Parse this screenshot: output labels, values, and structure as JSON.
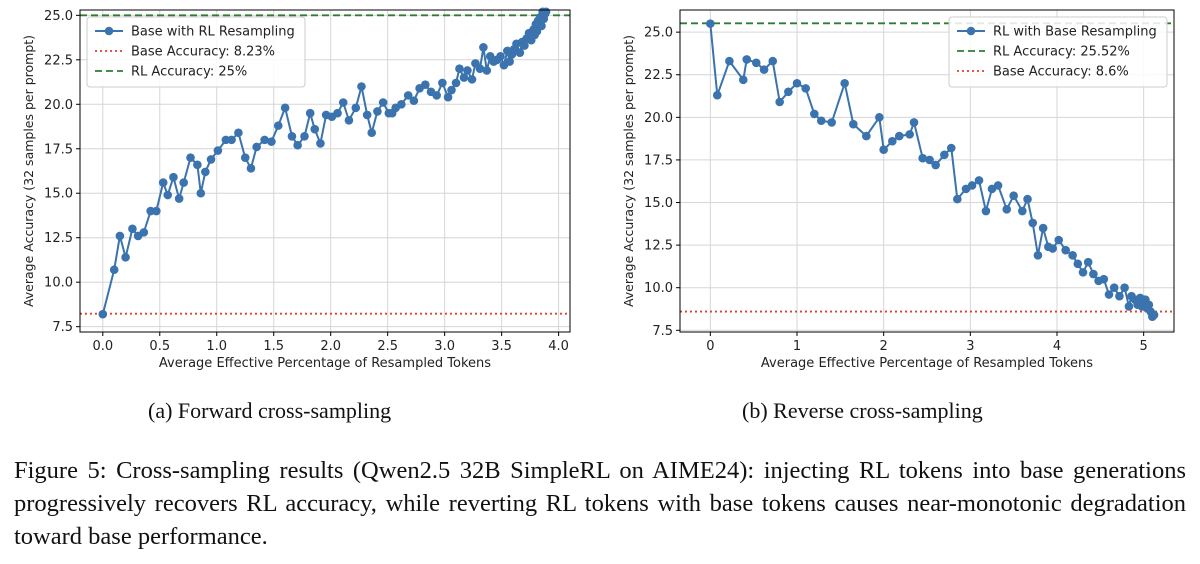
{
  "chart_data": [
    {
      "type": "line",
      "subcaption": "(a) Forward cross-sampling",
      "xlabel": "Average Effective Percentage of Resampled Tokens",
      "ylabel": "Average Accuracy (32 samples per prompt)",
      "xlim": [
        -0.2,
        4.1
      ],
      "ylim": [
        7.2,
        25.3
      ],
      "xticks": [
        0.0,
        0.5,
        1.0,
        1.5,
        2.0,
        2.5,
        3.0,
        3.5,
        4.0
      ],
      "xtick_labels": [
        "0.0",
        "0.5",
        "1.0",
        "1.5",
        "2.0",
        "2.5",
        "3.0",
        "3.5",
        "4.0"
      ],
      "yticks": [
        7.5,
        10.0,
        12.5,
        15.0,
        17.5,
        20.0,
        22.5,
        25.0
      ],
      "ytick_labels": [
        "7.5",
        "10.0",
        "12.5",
        "15.0",
        "17.5",
        "20.0",
        "22.5",
        "25.0"
      ],
      "grid": true,
      "legend_position": "top-left",
      "series": [
        {
          "name": "Base with RL Resampling",
          "color": "#3a73ad",
          "x": [
            0.0,
            0.1,
            0.15,
            0.2,
            0.26,
            0.31,
            0.36,
            0.42,
            0.47,
            0.53,
            0.57,
            0.62,
            0.67,
            0.71,
            0.77,
            0.83,
            0.86,
            0.9,
            0.95,
            1.01,
            1.08,
            1.13,
            1.19,
            1.25,
            1.3,
            1.35,
            1.42,
            1.48,
            1.54,
            1.6,
            1.66,
            1.71,
            1.77,
            1.82,
            1.86,
            1.91,
            1.96,
            2.01,
            2.06,
            2.11,
            2.16,
            2.22,
            2.27,
            2.32,
            2.36,
            2.41,
            2.46,
            2.51,
            2.54,
            2.57,
            2.62,
            2.68,
            2.73,
            2.78,
            2.83,
            2.88,
            2.93,
            2.98,
            3.03,
            3.06,
            3.1,
            3.13,
            3.17,
            3.2,
            3.24,
            3.27,
            3.31,
            3.34,
            3.37,
            3.4,
            3.43,
            3.46,
            3.49,
            3.52,
            3.55,
            3.57,
            3.59,
            3.61,
            3.63,
            3.66,
            3.68,
            3.7,
            3.72,
            3.74,
            3.76,
            3.78,
            3.79,
            3.8,
            3.81,
            3.82,
            3.83,
            3.84,
            3.85,
            3.86,
            3.87,
            3.88,
            3.89
          ],
          "y": [
            8.2,
            10.7,
            12.6,
            11.4,
            13.0,
            12.6,
            12.8,
            14.0,
            14.0,
            15.6,
            14.9,
            15.9,
            14.7,
            15.6,
            17.0,
            16.6,
            15.0,
            16.2,
            16.9,
            17.4,
            18.0,
            18.0,
            18.4,
            17.0,
            16.4,
            17.6,
            18.0,
            17.9,
            18.8,
            19.8,
            18.2,
            17.7,
            18.2,
            19.5,
            18.6,
            17.8,
            19.4,
            19.3,
            19.5,
            20.1,
            19.1,
            19.8,
            21.0,
            19.4,
            18.4,
            19.6,
            20.1,
            19.5,
            19.5,
            19.8,
            20.0,
            20.5,
            20.2,
            20.9,
            21.1,
            20.7,
            20.5,
            21.2,
            20.4,
            20.8,
            21.2,
            22.0,
            21.5,
            21.9,
            21.4,
            22.3,
            22.0,
            23.2,
            21.9,
            22.7,
            22.4,
            22.5,
            22.7,
            22.2,
            23.0,
            22.4,
            22.8,
            23.1,
            23.4,
            22.9,
            23.5,
            23.3,
            23.7,
            24.0,
            23.6,
            24.2,
            23.9,
            24.5,
            24.1,
            24.7,
            24.6,
            24.9,
            24.4,
            25.2,
            24.8,
            25.1,
            25.2
          ]
        },
        {
          "name": "Base Accuracy: 8.23%",
          "y": 8.23,
          "color": "#e0402f",
          "style": "dotted"
        },
        {
          "name": "RL Accuracy: 25%",
          "y": 25.0,
          "color": "#2e7d32",
          "style": "dashed"
        }
      ]
    },
    {
      "type": "line",
      "subcaption": "(b) Reverse cross-sampling",
      "xlabel": "Average Effective Percentage of Resampled Tokens",
      "ylabel": "Average Accuracy (32 samples per prompt)",
      "xlim": [
        -0.35,
        5.35
      ],
      "ylim": [
        7.4,
        26.3
      ],
      "xticks": [
        0,
        1,
        2,
        3,
        4,
        5
      ],
      "xtick_labels": [
        "0",
        "1",
        "2",
        "3",
        "4",
        "5"
      ],
      "yticks": [
        7.5,
        10.0,
        12.5,
        15.0,
        17.5,
        20.0,
        22.5,
        25.0
      ],
      "ytick_labels": [
        "7.5",
        "10.0",
        "12.5",
        "15.0",
        "17.5",
        "20.0",
        "22.5",
        "25.0"
      ],
      "grid": true,
      "legend_position": "top-right",
      "series": [
        {
          "name": "RL with Base Resampling",
          "color": "#3a73ad",
          "x": [
            0.0,
            0.08,
            0.22,
            0.38,
            0.42,
            0.53,
            0.62,
            0.72,
            0.8,
            0.9,
            1.0,
            1.1,
            1.2,
            1.28,
            1.4,
            1.55,
            1.65,
            1.8,
            1.95,
            2.0,
            2.1,
            2.18,
            2.3,
            2.35,
            2.45,
            2.53,
            2.6,
            2.7,
            2.78,
            2.85,
            2.95,
            3.02,
            3.1,
            3.18,
            3.25,
            3.32,
            3.42,
            3.5,
            3.6,
            3.66,
            3.72,
            3.78,
            3.84,
            3.9,
            3.95,
            4.02,
            4.1,
            4.18,
            4.24,
            4.3,
            4.36,
            4.42,
            4.48,
            4.54,
            4.6,
            4.66,
            4.72,
            4.78,
            4.83,
            4.86,
            4.9,
            4.93,
            4.96,
            4.98,
            5.0,
            5.02,
            5.04,
            5.06,
            5.08,
            5.1,
            5.12
          ],
          "y": [
            25.5,
            21.3,
            23.3,
            22.2,
            23.4,
            23.2,
            22.8,
            23.3,
            20.9,
            21.5,
            22.0,
            21.7,
            20.2,
            19.8,
            19.7,
            22.0,
            19.6,
            18.9,
            20.0,
            18.1,
            18.6,
            18.9,
            19.0,
            19.7,
            17.6,
            17.5,
            17.2,
            17.8,
            18.2,
            15.2,
            15.8,
            16.0,
            16.3,
            14.5,
            15.8,
            16.0,
            14.6,
            15.4,
            14.5,
            15.2,
            13.8,
            11.9,
            13.5,
            12.4,
            12.3,
            12.8,
            12.2,
            11.9,
            11.4,
            10.9,
            11.5,
            10.8,
            10.4,
            10.5,
            9.6,
            10.0,
            9.5,
            10.0,
            8.9,
            9.5,
            9.3,
            9.0,
            9.4,
            8.9,
            9.2,
            9.3,
            8.8,
            9.0,
            8.6,
            8.3,
            8.4
          ]
        },
        {
          "name": "RL Accuracy: 25.52%",
          "y": 25.52,
          "color": "#2e7d32",
          "style": "dashed"
        },
        {
          "name": "Base Accuracy: 8.6%",
          "y": 8.6,
          "color": "#e0402f",
          "style": "dotted"
        }
      ]
    }
  ],
  "captions": {
    "a": "(a) Forward cross-sampling",
    "b": "(b) Reverse cross-sampling",
    "figure": "Figure 5: Cross-sampling results (Qwen2.5 32B SimpleRL on AIME24): injecting RL tokens into base generations progressively recovers RL accuracy, while reverting RL tokens with base tokens causes near-monotonic degradation toward base performance."
  }
}
